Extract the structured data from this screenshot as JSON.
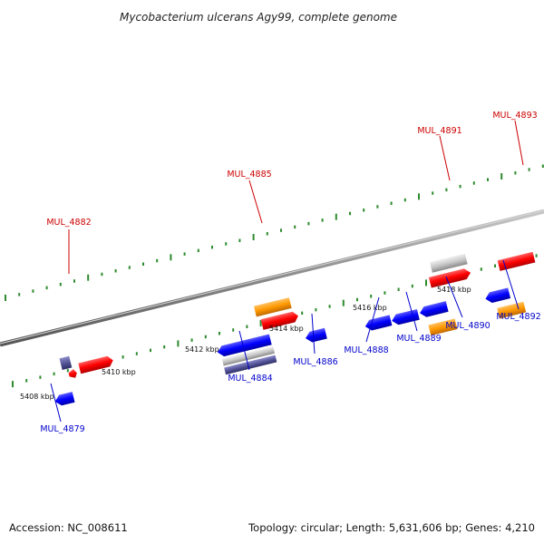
{
  "title": "Mycobacterium ulcerans Agy99, complete genome",
  "footer": {
    "accession": "Accession: NC_008611",
    "summary": "Topology: circular; Length: 5,631,606 bp; Genes: 4,210"
  },
  "colors": {
    "forward_gene": "#ff0000",
    "reverse_gene": "#0000ff",
    "orange_feature": "#ff9900",
    "gray_feature": "#c8c8c8",
    "purple_feature": "#555599",
    "tick": "#2e8b2e",
    "backbone": "#888888",
    "forward_label": "#cc0000",
    "reverse_label": "#0000cc"
  },
  "scale": {
    "unit": "kbp",
    "labels": [
      "5408 kbp",
      "5410 kbp",
      "5412 kbp",
      "5414 kbp",
      "5416 kbp",
      "5418 kbp"
    ]
  },
  "labels": {
    "forward": [
      "MUL_4882",
      "MUL_4885",
      "MUL_4891",
      "MUL_4893"
    ],
    "reverse": [
      "MUL_4879",
      "MUL_4884",
      "MUL_4886",
      "MUL_4888",
      "MUL_4889",
      "MUL_4890",
      "MUL_4892"
    ]
  }
}
